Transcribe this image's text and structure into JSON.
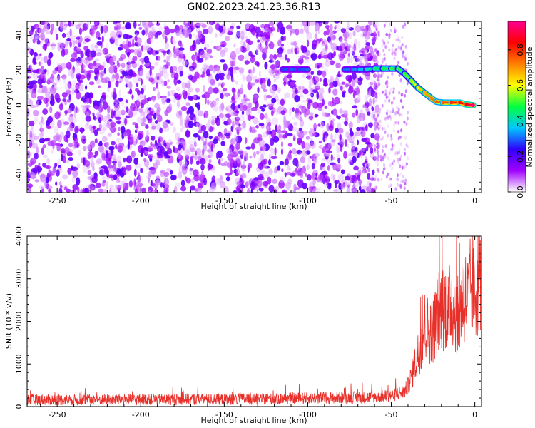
{
  "figure": {
    "title": "GN02.2023.241.23.36.R13"
  },
  "chart_data": [
    {
      "type": "heatmap",
      "title": "GN02.2023.241.23.36.R13",
      "xlabel": "Height of straight line (km)",
      "ylabel": "Frequency (Hz)",
      "xlim": [
        -268,
        4
      ],
      "ylim": [
        -50,
        48
      ],
      "x_ticks": [
        -250,
        -200,
        -150,
        -100,
        -50,
        0
      ],
      "y_ticks": [
        -40,
        -20,
        0,
        20,
        40
      ],
      "x_tick_labels": [
        "-250",
        "-200",
        "-150",
        "-100",
        "-50",
        "0"
      ],
      "y_tick_labels": [
        "-40",
        "-20",
        "0",
        "20",
        "40"
      ],
      "grid": false,
      "colormap": "rainbow (white-purple-blue-cyan-green-yellow-orange-red-magenta)",
      "colorbar": {
        "label": "Normalized spectral amplitude",
        "range": [
          0.0,
          0.96
        ],
        "ticks": [
          0.0,
          0.2,
          0.4,
          0.6,
          0.8
        ],
        "tick_labels": [
          "0.0",
          "0.2",
          "0.4",
          "0.6",
          "0.8"
        ],
        "colors": [
          "#ffffff",
          "#a000ff",
          "#3000ff",
          "#00c8ff",
          "#00ff40",
          "#ffff00",
          "#ff8000",
          "#ff0000",
          "#ff0090"
        ]
      },
      "noise_region": {
        "x_range": [
          -268,
          -58
        ],
        "y_range": [
          -50,
          48
        ],
        "amplitude": 0.2
      },
      "signal_track": [
        {
          "x": -115,
          "y": 20.5,
          "amplitude": 0.28
        },
        {
          "x": -110,
          "y": 20.5,
          "amplitude": 0.3
        },
        {
          "x": -105,
          "y": 20.5,
          "amplitude": 0.28
        },
        {
          "x": -100,
          "y": 20.5,
          "amplitude": 0.3
        },
        {
          "x": -78,
          "y": 20.5,
          "amplitude": 0.3
        },
        {
          "x": -73,
          "y": 20.5,
          "amplitude": 0.32
        },
        {
          "x": -69,
          "y": 20.5,
          "amplitude": 0.35
        },
        {
          "x": -65,
          "y": 20.5,
          "amplitude": 0.38
        },
        {
          "x": -60,
          "y": 21,
          "amplitude": 0.45
        },
        {
          "x": -55,
          "y": 21,
          "amplitude": 0.48
        },
        {
          "x": -50,
          "y": 21,
          "amplitude": 0.5
        },
        {
          "x": -46,
          "y": 21,
          "amplitude": 0.5
        },
        {
          "x": -42,
          "y": 18,
          "amplitude": 0.5
        },
        {
          "x": -38,
          "y": 14,
          "amplitude": 0.55
        },
        {
          "x": -34,
          "y": 10,
          "amplitude": 0.62
        },
        {
          "x": -30,
          "y": 7,
          "amplitude": 0.68
        },
        {
          "x": -26,
          "y": 4,
          "amplitude": 0.72
        },
        {
          "x": -23,
          "y": 2,
          "amplitude": 0.75
        },
        {
          "x": -19,
          "y": 1.5,
          "amplitude": 0.75
        },
        {
          "x": -14,
          "y": 1.5,
          "amplitude": 0.8
        },
        {
          "x": -9,
          "y": 1.5,
          "amplitude": 0.82
        },
        {
          "x": -5,
          "y": 0.5,
          "amplitude": 0.85
        },
        {
          "x": -1,
          "y": 0,
          "amplitude": 0.95
        }
      ]
    },
    {
      "type": "line",
      "xlabel": "Height of straight line (km)",
      "ylabel": "SNR (10 * v/v)",
      "xlim": [
        -268,
        4
      ],
      "ylim": [
        0,
        4000
      ],
      "x_ticks": [
        -250,
        -200,
        -150,
        -100,
        -50,
        0
      ],
      "y_ticks": [
        0,
        1000,
        2000,
        3000,
        4000
      ],
      "x_tick_labels": [
        "-250",
        "-200",
        "-150",
        "-100",
        "-50",
        "0"
      ],
      "y_tick_labels": [
        "0",
        "1000",
        "2000",
        "3000",
        "4000"
      ],
      "grid": false,
      "series": [
        {
          "color": "#e8302a",
          "x": [
            -268,
            -240,
            -210,
            -180,
            -150,
            -120,
            -100,
            -80,
            -60,
            -50,
            -45,
            -42,
            -40,
            -38,
            -35,
            -32,
            -30,
            -28,
            -25,
            -22,
            -20,
            -18,
            -16,
            -14,
            -12,
            -10,
            -8,
            -6,
            -4,
            -2,
            0,
            2,
            4
          ],
          "y": [
            160,
            160,
            165,
            170,
            175,
            180,
            200,
            210,
            220,
            260,
            320,
            360,
            480,
            700,
            1100,
            1500,
            1900,
            1800,
            1800,
            2200,
            2300,
            2400,
            2200,
            2500,
            2300,
            2100,
            2500,
            2600,
            2500,
            2900,
            2700,
            3000,
            3200
          ]
        }
      ]
    }
  ]
}
